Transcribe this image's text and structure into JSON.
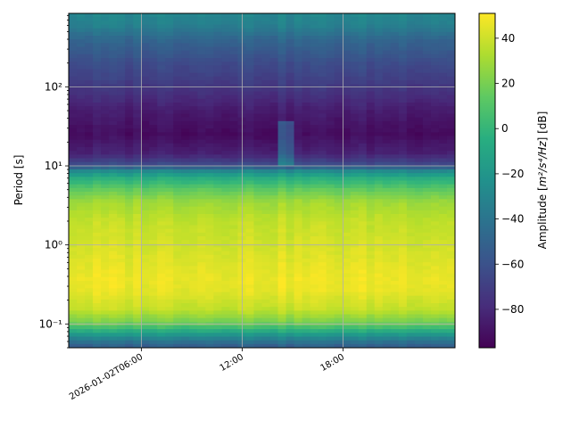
{
  "chart_data": {
    "type": "heatmap",
    "title": "",
    "xlabel": "",
    "ylabel": "Period [s]",
    "colorbar_label_prefix": "Amplitude [",
    "colorbar_label_math": "m²/s⁴/Hz",
    "colorbar_label_suffix": "] [dB]",
    "colormap": "viridis",
    "grid": true,
    "x_axis": {
      "kind": "datetime",
      "range": [
        "2026-01-02T01:40:00",
        "2026-01-02T24:40:00"
      ],
      "tick_labels": [
        {
          "value": "2026-01-02T06:00:00",
          "label": "2026-01-02T06:00"
        },
        {
          "value": "2026-01-02T12:00:00",
          "label": "12:00"
        },
        {
          "value": "2026-01-02T18:00:00",
          "label": "18:00"
        }
      ]
    },
    "y_axis": {
      "kind": "log",
      "range": [
        0.05,
        850
      ],
      "tick_labels": [
        {
          "value": 0.1,
          "label": "10⁻¹"
        },
        {
          "value": 1,
          "label": "10⁰"
        },
        {
          "value": 10,
          "label": "10¹"
        },
        {
          "value": 100,
          "label": "10²"
        }
      ]
    },
    "colorbar": {
      "range": [
        -97,
        51
      ],
      "ticks": [
        -80,
        -60,
        -40,
        -20,
        0,
        20,
        40
      ]
    },
    "period_profile_db": [
      {
        "period": 0.05,
        "db": -55
      },
      {
        "period": 0.06,
        "db": -40
      },
      {
        "period": 0.075,
        "db": -15
      },
      {
        "period": 0.1,
        "db": 18
      },
      {
        "period": 0.15,
        "db": 38
      },
      {
        "period": 0.25,
        "db": 46
      },
      {
        "period": 0.35,
        "db": 48
      },
      {
        "period": 0.6,
        "db": 45
      },
      {
        "period": 1.0,
        "db": 42
      },
      {
        "period": 2.0,
        "db": 38
      },
      {
        "period": 3.5,
        "db": 30
      },
      {
        "period": 5.0,
        "db": 15
      },
      {
        "period": 7.0,
        "db": -5
      },
      {
        "period": 8.5,
        "db": -25
      },
      {
        "period": 10,
        "db": -60
      },
      {
        "period": 14,
        "db": -82
      },
      {
        "period": 25,
        "db": -92
      },
      {
        "period": 50,
        "db": -85
      },
      {
        "period": 100,
        "db": -72
      },
      {
        "period": 200,
        "db": -62
      },
      {
        "period": 400,
        "db": -48
      },
      {
        "period": 600,
        "db": -32
      },
      {
        "period": 850,
        "db": -28
      }
    ],
    "local_features": [
      {
        "kind": "vertical_band",
        "time_start": "2026-01-02T14:00:00",
        "time_end": "2026-01-02T15:00:00",
        "period_min": 10,
        "period_max": 35,
        "db_offset": 30
      }
    ]
  }
}
